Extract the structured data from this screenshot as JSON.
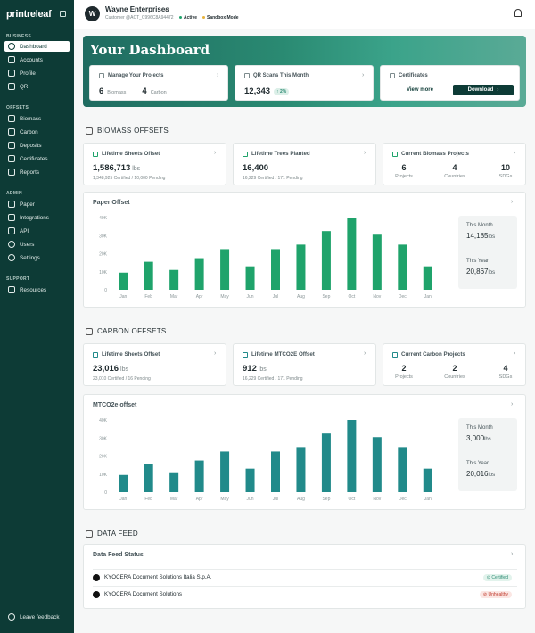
{
  "app": {
    "logo_text": "printreleaf"
  },
  "sidebar": {
    "sections": [
      {
        "label": "BUSINESS",
        "items": [
          {
            "label": "Dashboard",
            "icon": "dashboard-icon",
            "active": true
          },
          {
            "label": "Accounts",
            "icon": "accounts-icon"
          },
          {
            "label": "Profile",
            "icon": "profile-icon"
          },
          {
            "label": "QR",
            "icon": "qr-icon"
          }
        ]
      },
      {
        "label": "OFFSETS",
        "items": [
          {
            "label": "Biomass",
            "icon": "biomass-icon"
          },
          {
            "label": "Carbon",
            "icon": "carbon-icon"
          },
          {
            "label": "Deposits",
            "icon": "deposits-icon"
          },
          {
            "label": "Certificates",
            "icon": "certificates-icon"
          },
          {
            "label": "Reports",
            "icon": "reports-icon"
          }
        ]
      },
      {
        "label": "ADMIN",
        "items": [
          {
            "label": "Paper",
            "icon": "paper-icon"
          },
          {
            "label": "Integrations",
            "icon": "integrations-icon"
          },
          {
            "label": "API",
            "icon": "api-icon"
          },
          {
            "label": "Users",
            "icon": "users-icon"
          },
          {
            "label": "Settings",
            "icon": "settings-icon"
          }
        ]
      },
      {
        "label": "SUPPORT",
        "items": [
          {
            "label": "Resources",
            "icon": "resources-icon"
          }
        ]
      }
    ],
    "feedback_label": "Leave feedback"
  },
  "header": {
    "org_name": "Wayne Enterprises",
    "customer_id": "Customer @ACT_C996C8A94472",
    "status_active": "Active",
    "status_sandbox": "Sandbox Mode"
  },
  "hero": {
    "title": "Your Dashboard",
    "projects": {
      "title": "Manage Your Projects",
      "biomass_count": "6",
      "biomass_label": "Biomass",
      "carbon_count": "4",
      "carbon_label": "Carbon"
    },
    "qr": {
      "title": "QR Scans This Month",
      "value": "12,343",
      "change": "↑ 2%"
    },
    "certificates": {
      "title": "Certificates",
      "view_more": "View more",
      "download": "Download"
    }
  },
  "biomass": {
    "section_title": "BIOMASS OFFSETS",
    "sheets": {
      "title": "Lifetime Sheets Offset",
      "value": "1,586,713",
      "unit": "lbs",
      "sub": "1,348,925 Certified / 10,000 Pending"
    },
    "trees": {
      "title": "Lifetime Trees Planted",
      "value": "16,400",
      "sub": "16,229 Certified / 171 Pending"
    },
    "projects": {
      "title": "Current Biomass Projects",
      "stats": [
        {
          "num": "6",
          "label": "Projects"
        },
        {
          "num": "4",
          "label": "Countries"
        },
        {
          "num": "10",
          "label": "SDGs"
        }
      ]
    },
    "chart_title": "Paper Offset",
    "panel": {
      "month_label": "This Month",
      "month_value": "14,185",
      "year_label": "This Year",
      "year_value": "20,867",
      "unit": "lbs"
    }
  },
  "carbon": {
    "section_title": "CARBON OFFSETS",
    "sheets": {
      "title": "Lifetime Sheets Offset",
      "value": "23,016",
      "unit": "lbs",
      "sub": "23,010 Certified / 16 Pending"
    },
    "mtco2e": {
      "title": "Lifetime MTCO2E Offset",
      "value": "912",
      "unit": "lbs",
      "sub": "16,229 Certified / 171 Pending"
    },
    "projects": {
      "title": "Current Carbon Projects",
      "stats": [
        {
          "num": "2",
          "label": "Projects"
        },
        {
          "num": "2",
          "label": "Countries"
        },
        {
          "num": "4",
          "label": "SDGs"
        }
      ]
    },
    "chart_title": "MTCO2e offset",
    "panel": {
      "month_label": "This Month",
      "month_value": "3,000",
      "year_label": "This Year",
      "year_value": "20,016",
      "unit": "lbs"
    }
  },
  "data_feed": {
    "section_title": "DATA FEED",
    "card_title": "Data Feed Status",
    "rows": [
      {
        "name": "KYOCERA Document Solutions Italia S.p.A.",
        "status": "Certified",
        "ok": true
      },
      {
        "name": "KYOCERA Document Solutions",
        "status": "Unhealthy",
        "ok": false
      }
    ]
  },
  "colors": {
    "sidebar": "#0d3b36",
    "biomass_bar": "#1fa36b",
    "carbon_bar": "#218a8a",
    "accent": "#2a8a72"
  },
  "chart_data": [
    {
      "type": "bar",
      "title": "Paper Offset",
      "categories": [
        "Jan",
        "Feb",
        "Mar",
        "Apr",
        "May",
        "Jun",
        "Jul",
        "Aug",
        "Sep",
        "Oct",
        "Nov",
        "Dec",
        "Jan"
      ],
      "values": [
        9500,
        15500,
        11000,
        17500,
        22500,
        13000,
        22500,
        25000,
        32500,
        40000,
        30500,
        25000,
        13000
      ],
      "ylim": [
        0,
        40000
      ],
      "yticks": [
        "0",
        "10K",
        "20K",
        "30K",
        "40K"
      ],
      "grid": false
    },
    {
      "type": "bar",
      "title": "MTCO2e offset",
      "categories": [
        "Jan",
        "Feb",
        "Mar",
        "Apr",
        "May",
        "Jun",
        "Jul",
        "Aug",
        "Sep",
        "Oct",
        "Nov",
        "Dec",
        "Jan"
      ],
      "values": [
        9500,
        15500,
        11000,
        17500,
        22500,
        13000,
        22500,
        25000,
        32500,
        40000,
        30500,
        25000,
        13000
      ],
      "ylim": [
        0,
        40000
      ],
      "yticks": [
        "0",
        "10K",
        "20K",
        "30K",
        "40K"
      ],
      "grid": false
    }
  ]
}
